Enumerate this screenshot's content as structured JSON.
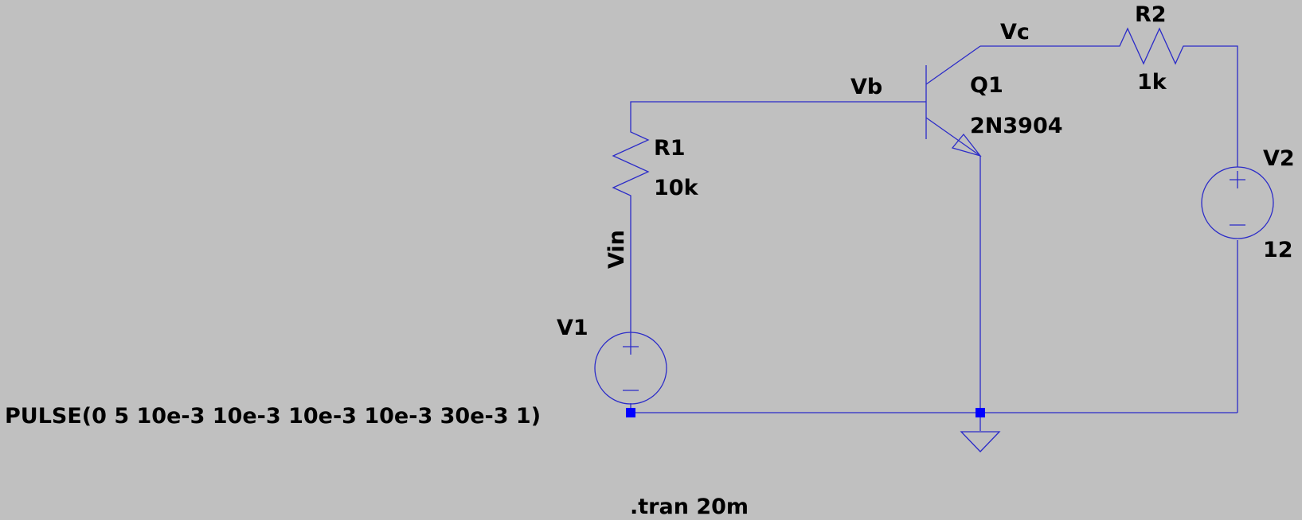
{
  "colors": {
    "background": "#c0c0c0",
    "wire": "#2b2bc8",
    "junction": "#0000ff",
    "text": "#000000"
  },
  "nets": {
    "vin": "Vin",
    "vb": "Vb",
    "vc": "Vc"
  },
  "components": {
    "r1": {
      "name": "R1",
      "value": "10k"
    },
    "r2": {
      "name": "R2",
      "value": "1k"
    },
    "q1": {
      "name": "Q1",
      "model": "2N3904"
    },
    "v1": {
      "name": "V1",
      "value": "PULSE(0 5 10e-3 10e-3 10e-3 10e-3 30e-3 1)"
    },
    "v2": {
      "name": "V2",
      "value": "12"
    }
  },
  "directive": ".tran 20m"
}
